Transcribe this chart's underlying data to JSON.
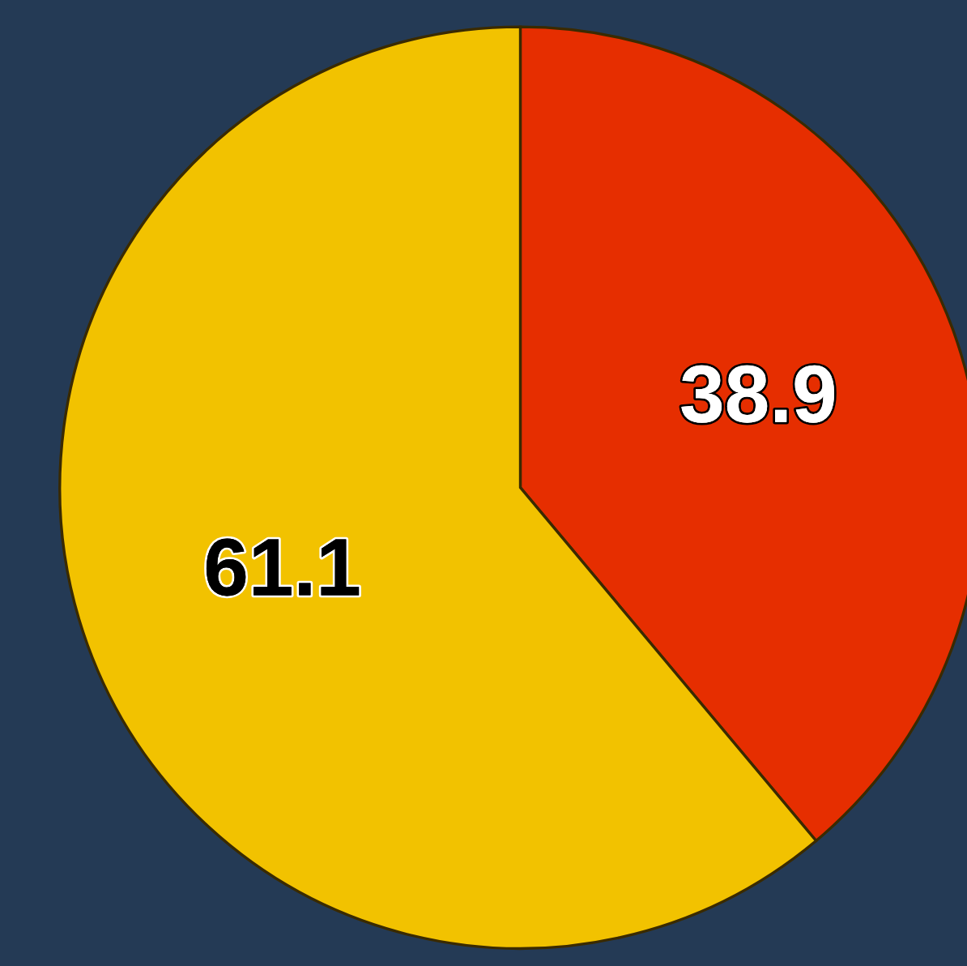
{
  "chart_data": {
    "type": "pie",
    "categories": [
      null,
      null
    ],
    "values": [
      38.9,
      61.1
    ],
    "colors": [
      "#e62e00",
      "#f2c200"
    ],
    "data_labels": true
  }
}
